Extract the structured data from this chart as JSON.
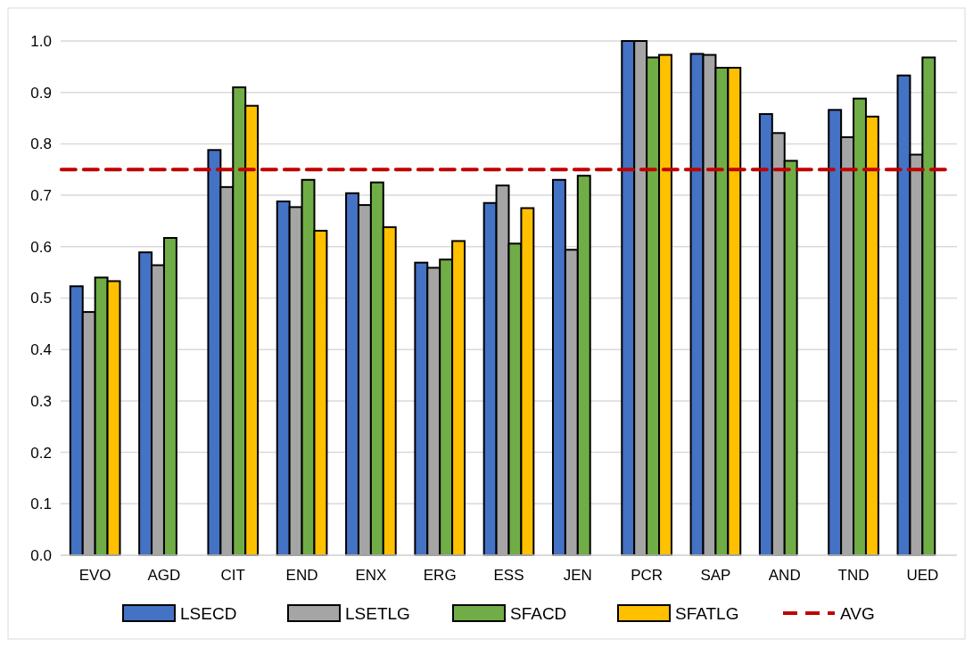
{
  "chart_data": {
    "type": "bar",
    "categories": [
      "EVO",
      "AGD",
      "CIT",
      "END",
      "ENX",
      "ERG",
      "ESS",
      "JEN",
      "PCR",
      "SAP",
      "AND",
      "TND",
      "UED"
    ],
    "series": [
      {
        "name": "LSECD",
        "color": "#4472c4",
        "values": [
          0.523,
          0.589,
          0.788,
          0.688,
          0.704,
          0.569,
          0.685,
          0.73,
          1.0,
          0.975,
          0.858,
          0.866,
          0.933
        ]
      },
      {
        "name": "LSETLG",
        "color": "#a5a5a5",
        "values": [
          0.473,
          0.564,
          0.716,
          0.677,
          0.681,
          0.559,
          0.719,
          0.594,
          1.0,
          0.973,
          0.821,
          0.813,
          0.779
        ]
      },
      {
        "name": "SFACD",
        "color": "#70ad47",
        "values": [
          0.54,
          0.617,
          0.91,
          0.73,
          0.725,
          0.575,
          0.606,
          0.738,
          0.968,
          0.948,
          0.767,
          0.888,
          0.968
        ]
      },
      {
        "name": "SFATLG",
        "color": "#ffc000",
        "values": [
          0.533,
          null,
          0.874,
          0.631,
          0.638,
          0.611,
          0.675,
          null,
          0.973,
          0.948,
          null,
          0.853,
          null
        ]
      }
    ],
    "ylim": [
      0,
      1.0
    ],
    "yticks": [
      {
        "value": 0,
        "label": "0.0"
      },
      {
        "value": 0.1,
        "label": "0.1"
      },
      {
        "value": 0.2,
        "label": "0.2"
      },
      {
        "value": 0.3,
        "label": "0.3"
      },
      {
        "value": 0.4,
        "label": "0.4"
      },
      {
        "value": 0.5,
        "label": "0.5"
      },
      {
        "value": 0.6,
        "label": "0.6"
      },
      {
        "value": 0.7,
        "label": "0.7"
      },
      {
        "value": 0.8,
        "label": "0.8"
      },
      {
        "value": 0.9,
        "label": "0.9"
      },
      {
        "value": 1.0,
        "label": "1.0"
      }
    ],
    "grid": "y",
    "legend": "bottom",
    "ref_lines": [
      {
        "axis": "y",
        "value": 0.75,
        "label": "AVG",
        "color": "#c00000",
        "line_style": "dashed"
      }
    ]
  }
}
